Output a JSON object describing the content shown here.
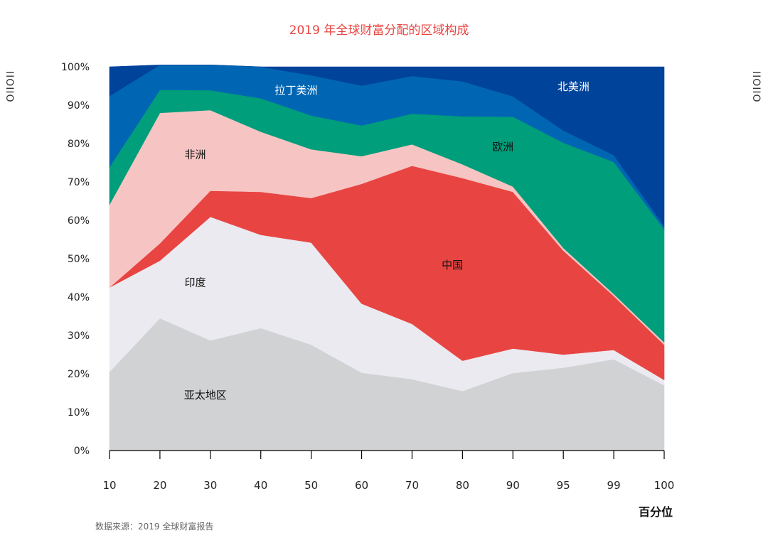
{
  "side_marks": {
    "left": "IIOIIO",
    "right": "IIOIIO"
  },
  "chart_data": {
    "type": "area",
    "stacked": true,
    "title": "2019 年全球财富分配的区域构成",
    "xlabel": "百分位",
    "ylabel": "",
    "source": "数据来源：2019 全球财富报告",
    "categories": [
      "10",
      "20",
      "30",
      "40",
      "50",
      "60",
      "70",
      "80",
      "90",
      "95",
      "99",
      "100"
    ],
    "ylim": [
      0,
      100
    ],
    "yticks": [
      "0%",
      "10%",
      "20%",
      "30%",
      "40%",
      "50%",
      "60%",
      "70%",
      "80%",
      "90%",
      "100%"
    ],
    "series": [
      {
        "name": "亚太地区",
        "label": "亚太地区",
        "color": "#d1d2d4",
        "label_color": "#111111",
        "values": [
          20.5,
          34.5,
          28.7,
          31.9,
          27.6,
          20.3,
          18.6,
          15.5,
          20.2,
          21.6,
          23.8,
          17.0
        ]
      },
      {
        "name": "印度",
        "label": "印度",
        "color": "#ebeaf0",
        "label_color": "#111111",
        "values": [
          22.0,
          15.0,
          32.2,
          24.3,
          26.6,
          18.0,
          14.4,
          7.9,
          6.4,
          3.4,
          2.4,
          1.4
        ]
      },
      {
        "name": "中国",
        "label": "中国",
        "color": "#e84542",
        "label_color": "#111111",
        "values": [
          0.0,
          4.5,
          6.8,
          11.2,
          11.6,
          31.2,
          41.2,
          47.6,
          40.8,
          27.1,
          14.1,
          9.2
        ]
      },
      {
        "name": "非洲",
        "label": "非洲",
        "color": "#f6c5c3",
        "label_color": "#111111",
        "values": [
          21.6,
          34.0,
          21.0,
          15.7,
          12.7,
          7.2,
          5.6,
          3.6,
          1.4,
          0.7,
          0.5,
          0.6
        ]
      },
      {
        "name": "欧洲",
        "label": "欧洲",
        "color": "#009e7b",
        "label_color": "#111111",
        "values": [
          9.8,
          6.0,
          5.2,
          8.7,
          8.8,
          8.0,
          8.0,
          12.5,
          18.2,
          27.4,
          34.4,
          29.5
        ]
      },
      {
        "name": "拉丁美洲",
        "label": "拉丁美洲",
        "color": "#0066b3",
        "label_color": "#ffffff",
        "values": [
          18.5,
          6.5,
          6.6,
          8.2,
          10.5,
          10.4,
          9.8,
          9.1,
          5.3,
          3.2,
          1.8,
          0.8
        ]
      },
      {
        "name": "北美洲",
        "label": "北美洲",
        "color": "#00439a",
        "label_color": "#ffffff",
        "values": [
          7.6,
          0.0,
          0.0,
          0.0,
          2.2,
          4.9,
          2.4,
          3.8,
          7.7,
          16.6,
          23.0,
          41.5
        ]
      }
    ],
    "annotations": [
      {
        "text": "北美洲",
        "series": "北美洲"
      },
      {
        "text": "拉丁美洲",
        "series": "拉丁美洲"
      },
      {
        "text": "欧洲",
        "series": "欧洲"
      },
      {
        "text": "非洲",
        "series": "非洲"
      },
      {
        "text": "中国",
        "series": "中国"
      },
      {
        "text": "印度",
        "series": "印度"
      },
      {
        "text": "亚太地区",
        "series": "亚太地区"
      }
    ],
    "colors": {
      "title": "#e84542",
      "axis": "#000000",
      "tick_text": "#222222",
      "source_text": "#666666"
    }
  }
}
